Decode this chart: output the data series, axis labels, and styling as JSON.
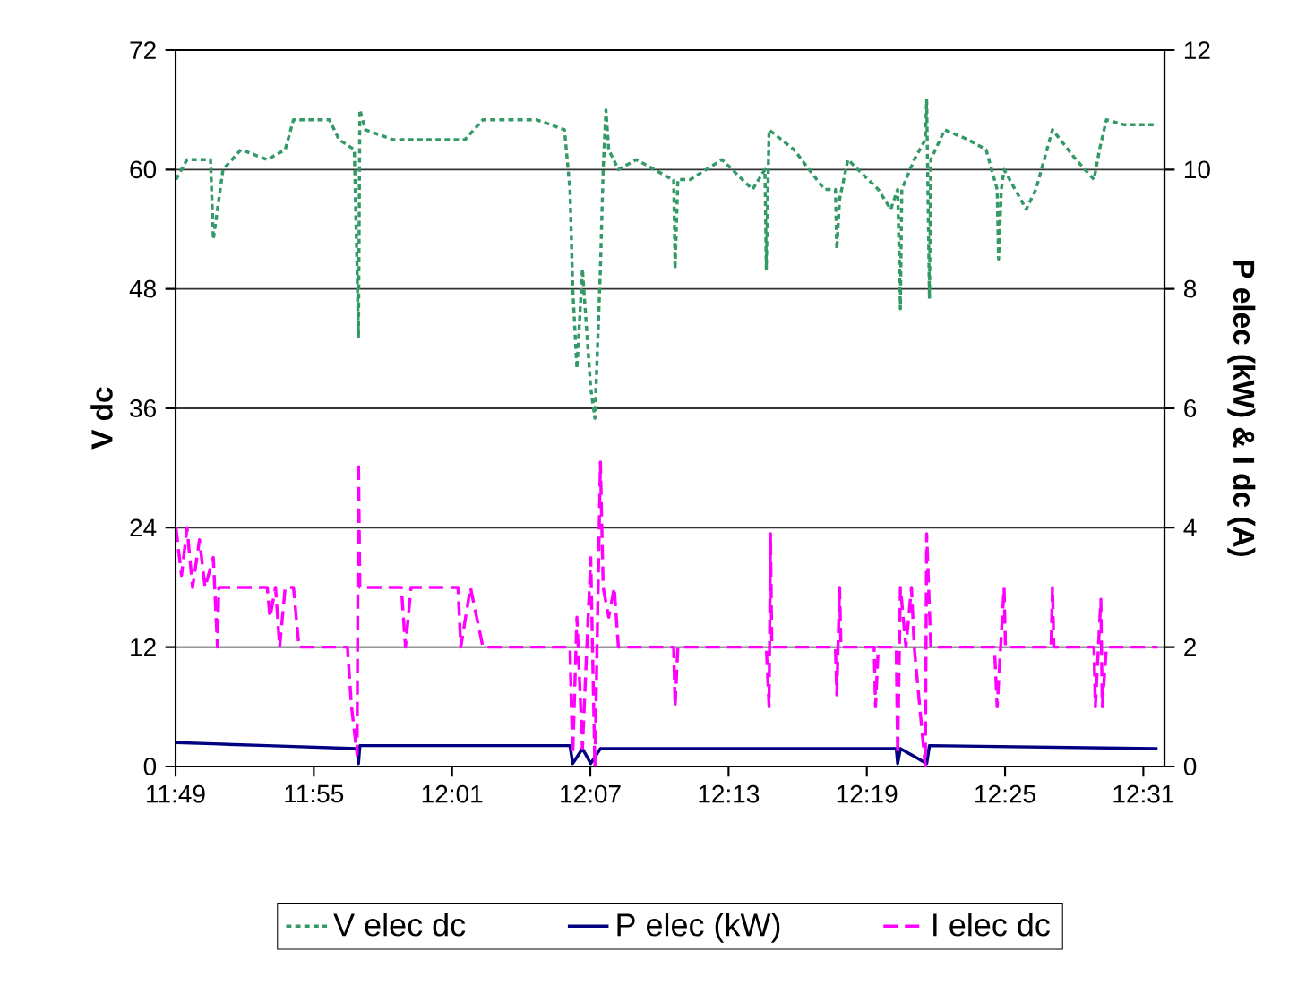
{
  "chart_data": {
    "type": "line",
    "ylabel": "V dc",
    "y2label": "P elec (kW) & I dc (A)",
    "xlim": [
      11.8167,
      12.532
    ],
    "xticks": [
      {
        "value": 11.8167,
        "label": "11:49"
      },
      {
        "value": 11.9167,
        "label": "11:55"
      },
      {
        "value": 12.0167,
        "label": "12:01"
      },
      {
        "value": 12.1167,
        "label": "12:07"
      },
      {
        "value": 12.2167,
        "label": "12:13"
      },
      {
        "value": 12.3167,
        "label": "12:19"
      },
      {
        "value": 12.4167,
        "label": "12:25"
      },
      {
        "value": 12.5167,
        "label": "12:31"
      }
    ],
    "ylim": [
      0,
      72
    ],
    "yticks": [
      0,
      12,
      24,
      36,
      48,
      60,
      72
    ],
    "y2lim": [
      0,
      12
    ],
    "y2ticks": [
      0,
      2,
      4,
      6,
      8,
      10,
      12
    ],
    "grid": "y",
    "legend": "bottom",
    "marker": "none",
    "series": [
      {
        "name": "V elec dc",
        "color": "#339966",
        "line_style": "dotted",
        "x": [
          11.817,
          11.825,
          11.838,
          11.842,
          11.844,
          11.851,
          11.864,
          11.883,
          11.896,
          11.902,
          11.928,
          11.935,
          11.946,
          11.948,
          11.949,
          11.95,
          11.954,
          11.974,
          12.0,
          12.026,
          12.039,
          12.078,
          12.098,
          12.102,
          12.104,
          12.107,
          12.111,
          12.117,
          12.12,
          12.124,
          12.126,
          12.128,
          12.13,
          12.137,
          12.15,
          12.163,
          12.176,
          12.177,
          12.178,
          12.18,
          12.189,
          12.212,
          12.234,
          12.243,
          12.244,
          12.246,
          12.264,
          12.286,
          12.294,
          12.295,
          12.297,
          12.303,
          12.325,
          12.334,
          12.339,
          12.341,
          12.342,
          12.351,
          12.359,
          12.36,
          12.362,
          12.363,
          12.373,
          12.39,
          12.403,
          12.411,
          12.412,
          12.414,
          12.416,
          12.432,
          12.439,
          12.451,
          12.468,
          12.481,
          12.485,
          12.49,
          12.503,
          12.527
        ],
        "values": [
          59,
          61,
          61,
          61,
          53,
          60,
          62,
          61,
          62,
          65,
          65,
          63,
          62,
          50,
          43,
          66,
          64,
          63,
          63,
          63,
          65,
          65,
          64,
          58,
          48,
          40,
          50,
          38,
          35,
          50,
          60,
          66,
          62,
          60,
          61,
          60,
          59,
          59,
          50,
          59,
          59,
          61,
          58,
          60,
          50,
          64,
          62,
          58,
          58,
          52,
          57,
          61,
          58,
          56,
          58,
          46,
          58,
          61,
          63,
          67,
          47,
          61,
          64,
          63,
          62,
          58,
          51,
          58,
          60,
          56,
          58,
          64,
          61,
          59,
          62,
          65,
          64.5,
          64.5
        ]
      },
      {
        "name": "P elec (kW)",
        "color": "#000080",
        "line_style": "solid",
        "axis": "y2",
        "x": [
          11.817,
          11.844,
          11.883,
          11.948,
          11.949,
          11.95,
          12.102,
          12.104,
          12.111,
          12.117,
          12.124,
          12.247,
          12.338,
          12.339,
          12.341,
          12.36,
          12.362,
          12.527
        ],
        "values": [
          0.4,
          0.38,
          0.35,
          0.3,
          0.05,
          0.35,
          0.35,
          0.05,
          0.3,
          0.05,
          0.3,
          0.3,
          0.3,
          0.05,
          0.3,
          0.05,
          0.35,
          0.3
        ]
      },
      {
        "name": "I elec dc",
        "color": "#ff00ff",
        "line_style": "dashed",
        "axis": "y2",
        "x": [
          11.817,
          11.821,
          11.825,
          11.829,
          11.834,
          11.838,
          11.844,
          11.847,
          11.848,
          11.883,
          11.885,
          11.889,
          11.892,
          11.896,
          11.902,
          11.906,
          11.941,
          11.944,
          11.948,
          11.949,
          11.95,
          11.98,
          11.983,
          11.987,
          12.021,
          12.023,
          12.03,
          12.039,
          12.102,
          12.103,
          12.104,
          12.107,
          12.111,
          12.117,
          12.12,
          12.124,
          12.126,
          12.13,
          12.134,
          12.137,
          12.177,
          12.178,
          12.18,
          12.244,
          12.246,
          12.247,
          12.248,
          12.294,
          12.295,
          12.297,
          12.298,
          12.322,
          12.323,
          12.325,
          12.338,
          12.339,
          12.341,
          12.345,
          12.349,
          12.351,
          12.359,
          12.36,
          12.363,
          12.409,
          12.411,
          12.416,
          12.417,
          12.45,
          12.451,
          12.452,
          12.481,
          12.482,
          12.486,
          12.487,
          12.49,
          12.527
        ],
        "values": [
          4,
          3.2,
          4,
          3,
          3.8,
          3,
          3.5,
          2,
          3,
          3,
          2.5,
          3,
          2,
          3,
          3,
          2,
          2,
          1,
          0.2,
          5.1,
          3,
          3,
          2,
          3,
          3,
          2,
          3,
          2,
          2,
          1,
          0.2,
          2.5,
          0.3,
          3.5,
          0,
          5.1,
          3,
          2.5,
          3,
          2,
          2,
          1,
          2,
          2,
          1,
          3.9,
          2,
          2,
          1.2,
          3,
          2,
          2,
          1,
          2,
          2,
          0.2,
          3,
          2,
          3,
          2,
          0,
          3.9,
          2,
          2,
          1,
          3,
          2,
          2,
          3,
          2,
          2,
          1,
          2.8,
          1,
          2,
          2
        ]
      }
    ]
  }
}
